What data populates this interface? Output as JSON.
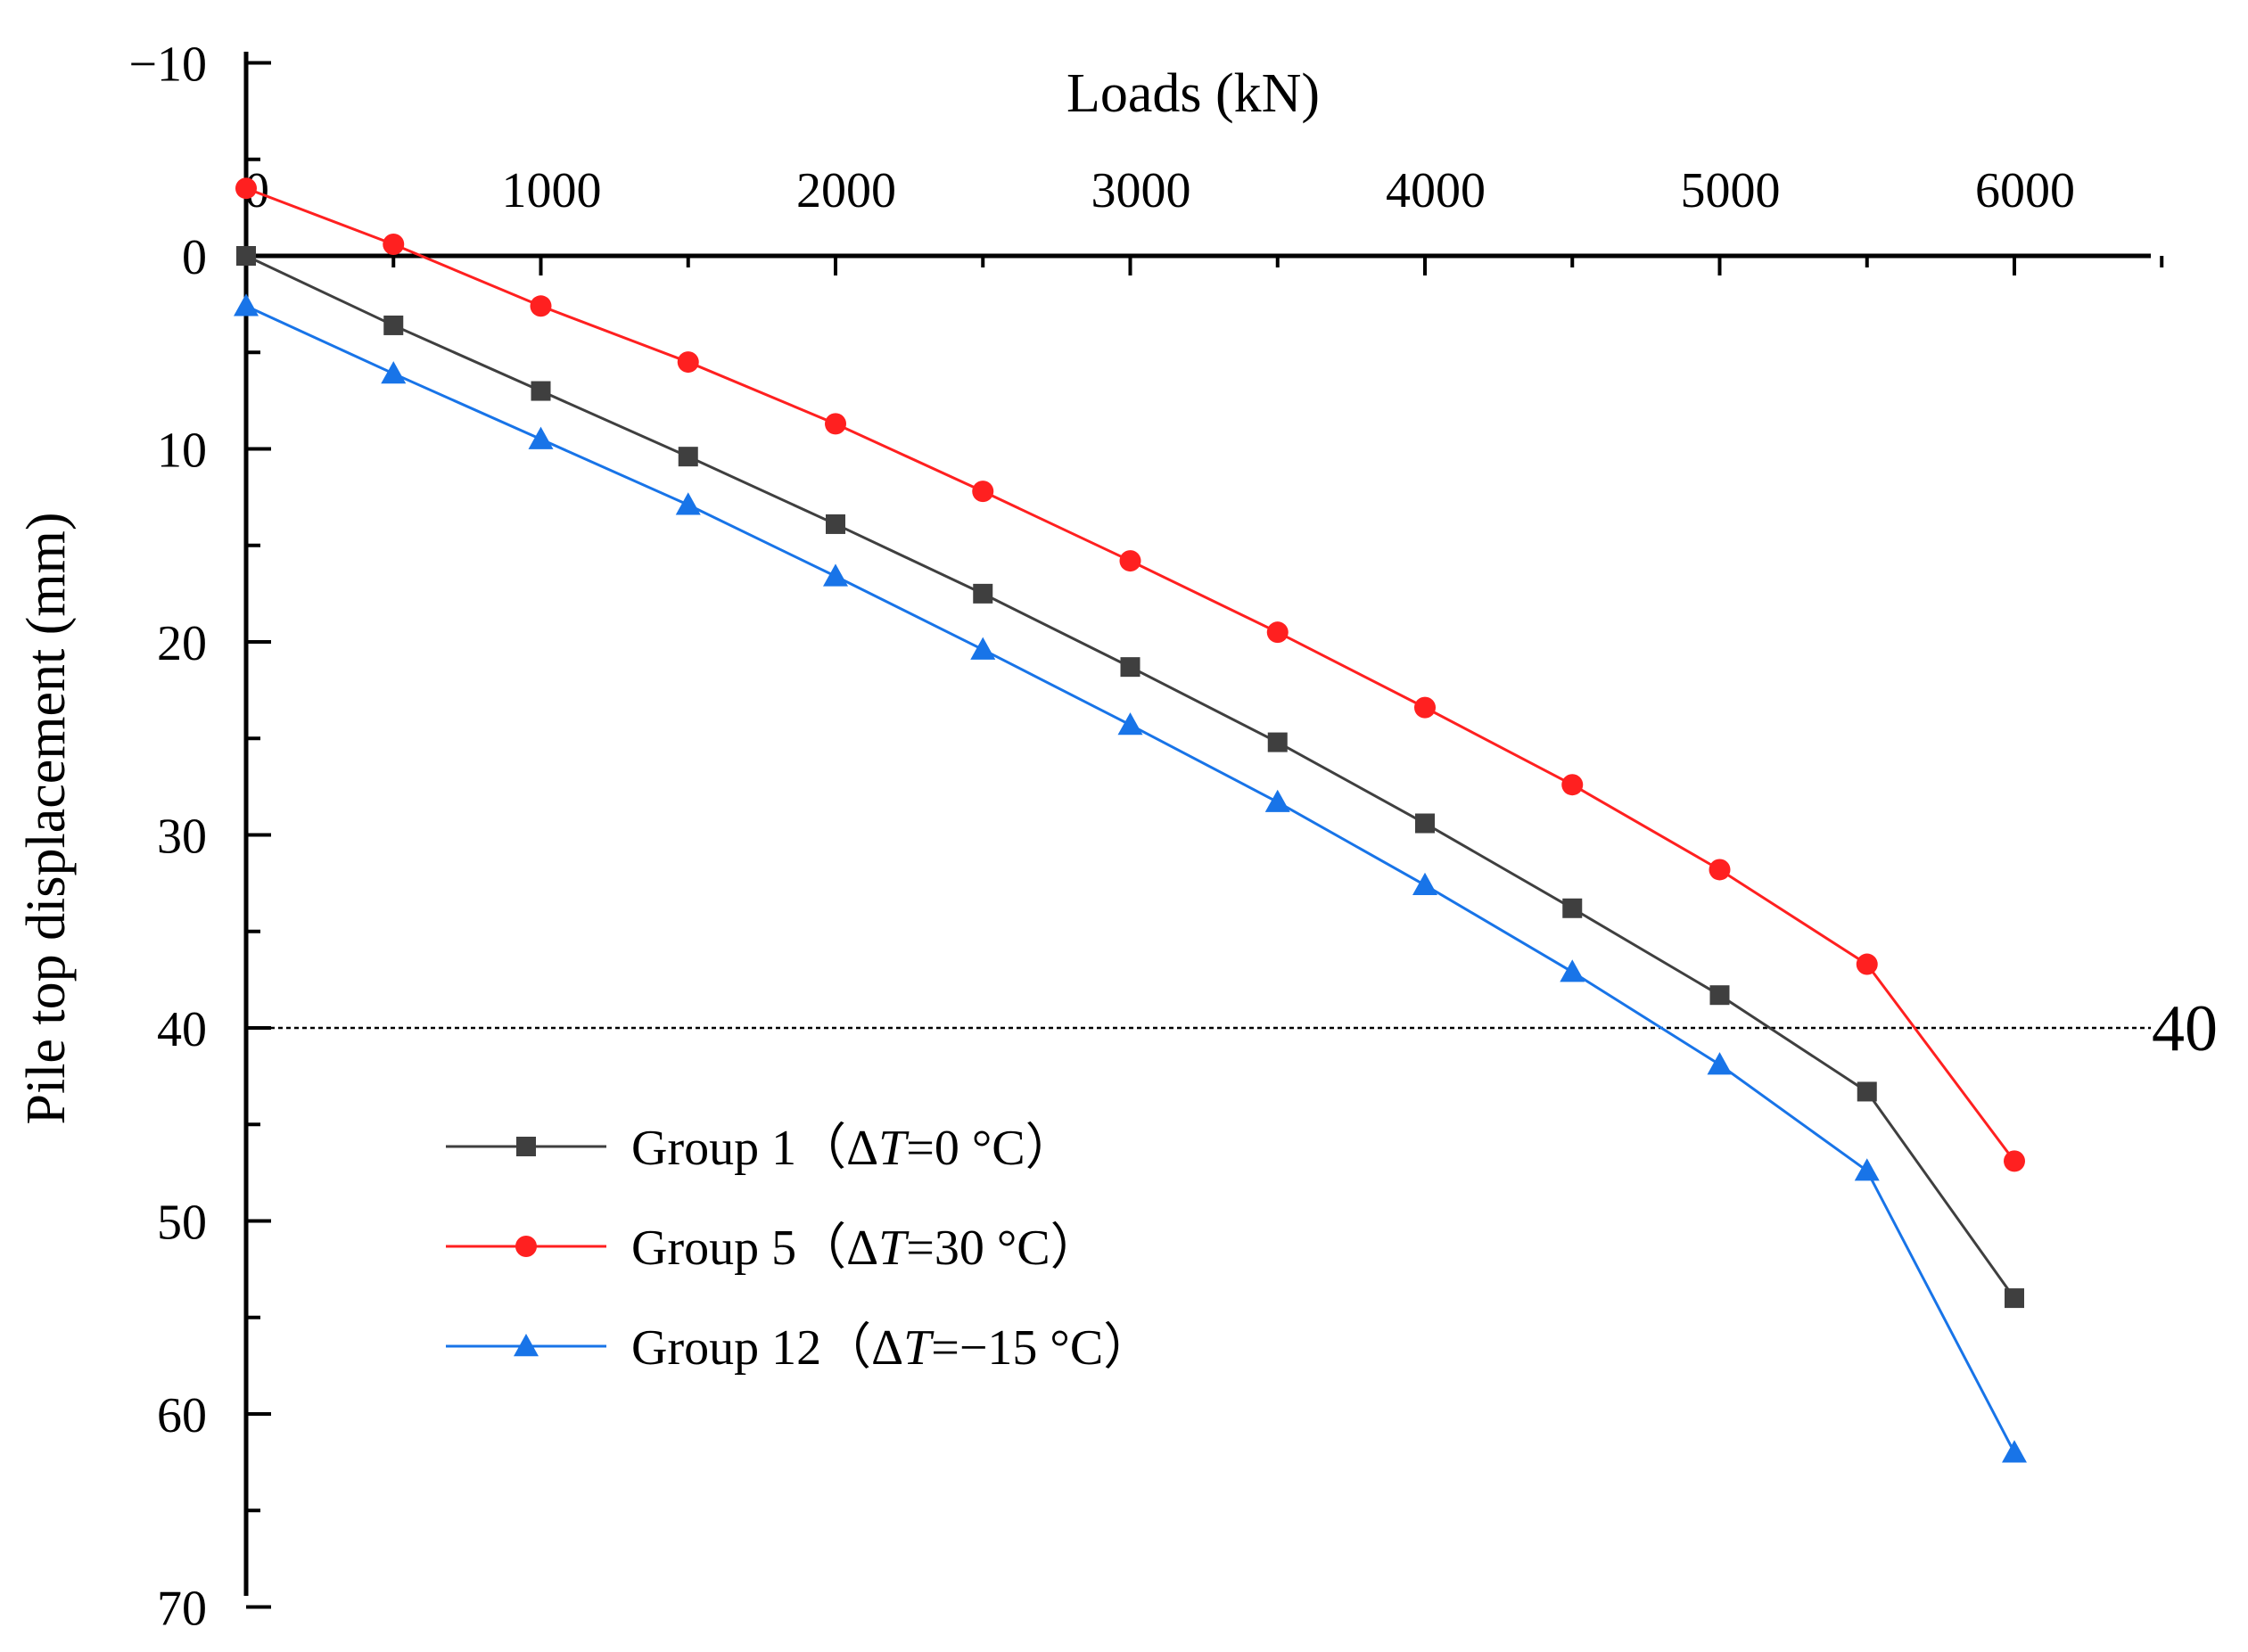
{
  "chart_data": {
    "type": "line",
    "title": "",
    "xlabel": "Loads (kN)",
    "ylabel": "Pile top displacement (mm)",
    "x_axis_position": "top",
    "y_axis_inverted": true,
    "xlim": [
      0,
      6500
    ],
    "ylim": [
      -10,
      70
    ],
    "x_ticks": [
      0,
      1000,
      2000,
      3000,
      4000,
      5000,
      6000
    ],
    "x_tick_labels": [
      "0",
      "1000",
      "2000",
      "3000",
      "4000",
      "5000",
      "6000"
    ],
    "y_ticks": [
      -10,
      0,
      10,
      20,
      30,
      40,
      50,
      60,
      70
    ],
    "y_tick_labels": [
      "−10",
      "0",
      "10",
      "20",
      "30",
      "40",
      "50",
      "60",
      "70"
    ],
    "x": [
      0,
      500,
      1000,
      1500,
      2000,
      2500,
      3000,
      3500,
      4000,
      4500,
      5000,
      5500,
      6000
    ],
    "series": [
      {
        "name": "Group 1",
        "legend_prefix": "Group 1（Δ",
        "legend_var": "T",
        "legend_suffix": "=0 °C）",
        "color": "#3f3f3f",
        "marker": "square",
        "values": [
          0,
          3.6,
          7.0,
          10.4,
          13.9,
          17.5,
          21.3,
          25.2,
          29.4,
          33.8,
          38.3,
          43.3,
          54.0
        ]
      },
      {
        "name": "Group 5",
        "legend_prefix": "Group 5（Δ",
        "legend_var": "T",
        "legend_suffix": "=30 °C）",
        "color": "#ff2020",
        "marker": "circle",
        "values": [
          -3.5,
          -0.6,
          2.6,
          5.5,
          8.7,
          12.2,
          15.8,
          19.5,
          23.4,
          27.4,
          31.8,
          36.7,
          46.9
        ]
      },
      {
        "name": "Group 12",
        "legend_prefix": "Group 12（Δ",
        "legend_var": "T",
        "legend_suffix": "=−15 °C）",
        "color": "#1874e8",
        "marker": "triangle",
        "values": [
          2.6,
          6.1,
          9.5,
          12.9,
          16.6,
          20.4,
          24.3,
          28.3,
          32.6,
          37.1,
          41.9,
          47.4,
          62.0
        ]
      }
    ],
    "reference_line": {
      "y": 40,
      "label": "40",
      "style": "dotted",
      "color": "#000000"
    },
    "legend_position": "bottom-left"
  }
}
